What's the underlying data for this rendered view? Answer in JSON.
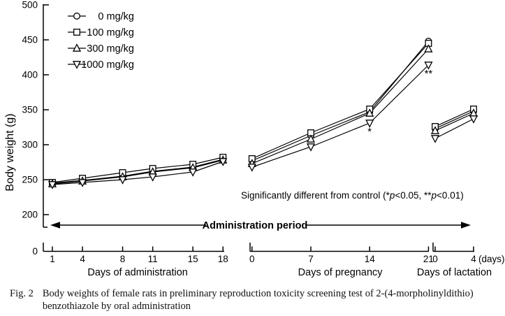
{
  "figure_caption": {
    "label": "Fig. 2",
    "line1": "Body weights of female rats in preliminary reproduction toxicity screening test of 2-(4-morpholinyldithio)",
    "line2": "benzothiazole by oral administration"
  },
  "chart_data": {
    "type": "line",
    "title": "",
    "ylabel": "Body weight (g)",
    "ylim": [
      200,
      500
    ],
    "y_ticks": [
      500,
      450,
      400,
      350,
      300,
      250,
      200
    ],
    "y_axis_break_label": "0",
    "x_unit_label": "(days)",
    "grid": false,
    "legend_position": "top-left",
    "marker_color": "#000000",
    "background_color": "#ffffff",
    "series_names": [
      "0 mg/kg",
      "100 mg/kg",
      "300 mg/kg",
      "1000 mg/kg"
    ],
    "series_markers": [
      "circle",
      "square",
      "triangle-up",
      "triangle-down"
    ],
    "segments": [
      {
        "xlabel": "Days of administration",
        "x": [
          1,
          4,
          8,
          11,
          15,
          18
        ],
        "series": [
          {
            "name": "0 mg/kg",
            "values": [
              245,
              249,
              255,
              262,
              268,
              279
            ]
          },
          {
            "name": "100 mg/kg",
            "values": [
              246,
              252,
              260,
              266,
              272,
              282
            ]
          },
          {
            "name": "300 mg/kg",
            "values": [
              244,
              248,
              254,
              261,
              267,
              278
            ]
          },
          {
            "name": "1000 mg/kg",
            "values": [
              243,
              246,
              250,
              254,
              261,
              276
            ]
          }
        ],
        "significance": []
      },
      {
        "xlabel": "Days of pregnancy",
        "x": [
          0,
          7,
          14,
          21
        ],
        "series": [
          {
            "name": "0 mg/kg",
            "values": [
              277,
              313,
              347,
              448
            ]
          },
          {
            "name": "100 mg/kg",
            "values": [
              280,
              317,
              351,
              445
            ]
          },
          {
            "name": "300 mg/kg",
            "values": [
              273,
              308,
              345,
              437
            ]
          },
          {
            "name": "1000 mg/kg",
            "values": [
              268,
              297,
              331,
              414
            ]
          }
        ],
        "significance": [
          {
            "series": "1000 mg/kg",
            "x": 14,
            "label": "*"
          },
          {
            "series": "1000 mg/kg",
            "x": 21,
            "label": "**"
          }
        ]
      },
      {
        "xlabel": "Days of lactation",
        "x": [
          0,
          4
        ],
        "series": [
          {
            "name": "0 mg/kg",
            "values": [
              323,
              348
            ]
          },
          {
            "name": "100 mg/kg",
            "values": [
              326,
              351
            ]
          },
          {
            "name": "300 mg/kg",
            "values": [
              320,
              345
            ]
          },
          {
            "name": "1000 mg/kg",
            "values": [
              309,
              337
            ]
          }
        ],
        "significance": []
      }
    ],
    "annotations": {
      "significance_note": "Significantly different from control (*p<0.05, **p<0.01)",
      "significance_note_parts": [
        {
          "t": "Significantly different from control (*",
          "italic": false
        },
        {
          "t": "p",
          "italic": true
        },
        {
          "t": "<0.05, **",
          "italic": false
        },
        {
          "t": "p",
          "italic": true
        },
        {
          "t": "<0.01)",
          "italic": false
        }
      ],
      "admin_period": "Administration period"
    }
  }
}
